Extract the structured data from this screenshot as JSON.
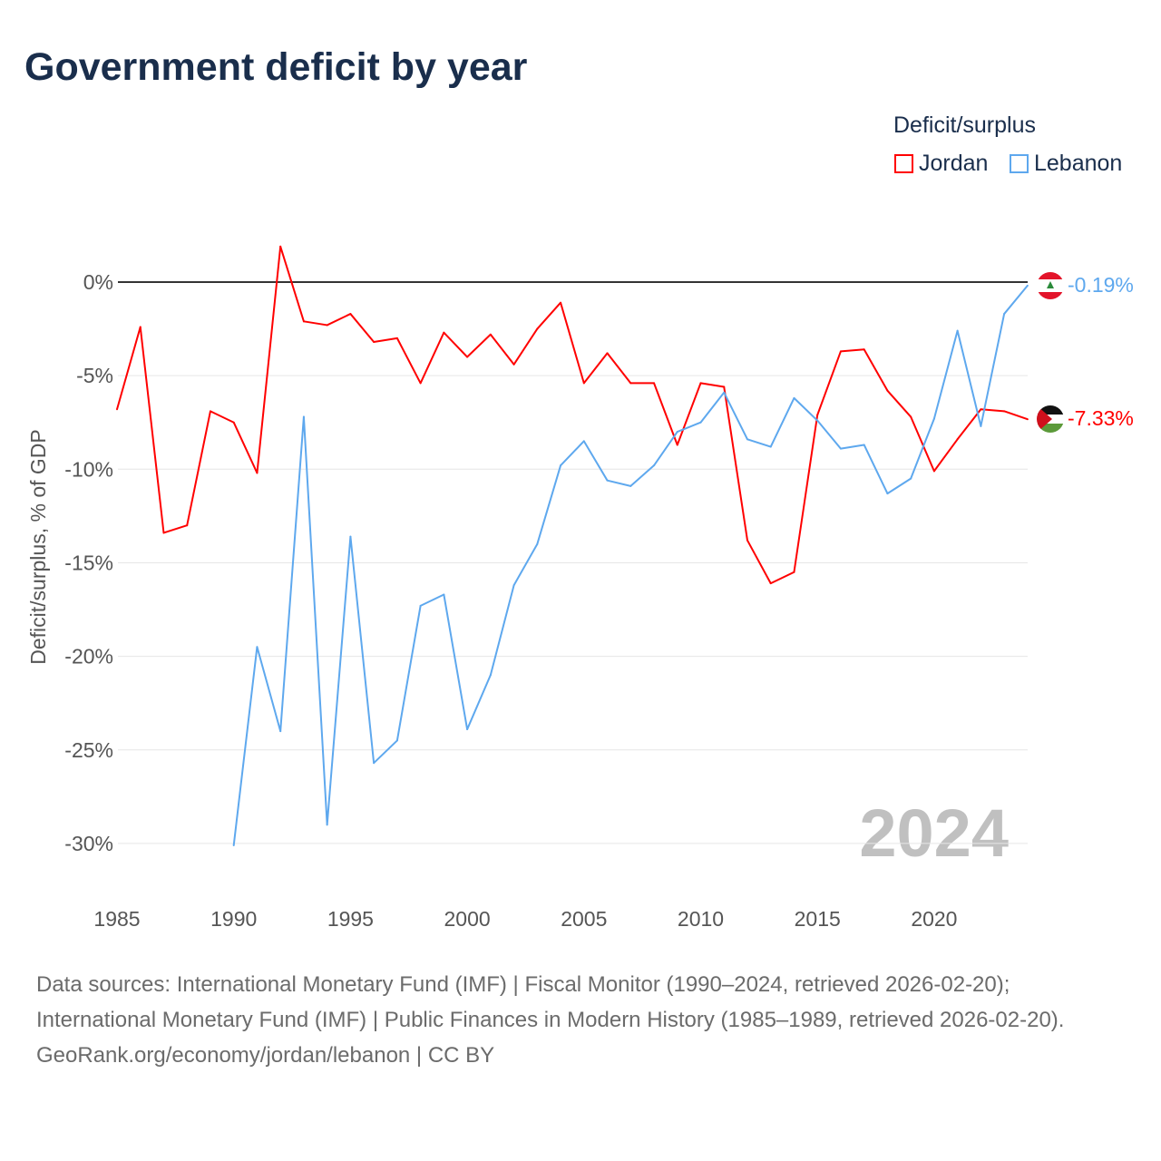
{
  "title": "Government deficit by year",
  "legend": {
    "title": "Deficit/surplus",
    "items": [
      {
        "label": "Jordan",
        "color": "#ff0000"
      },
      {
        "label": "Lebanon",
        "color": "#5ea8ee"
      }
    ]
  },
  "year_overlay": "2024",
  "end_labels": {
    "jordan": "-7.33%",
    "lebanon": "-0.19%"
  },
  "footer": {
    "sources": "Data sources: International Monetary Fund (IMF) | Fiscal Monitor (1990–2024, retrieved 2026-02-20); International Monetary Fund (IMF) | Public Finances in Modern History (1985–1989, retrieved 2026-02-20).",
    "credit": "GeoRank.org/economy/jordan/lebanon | CC BY"
  },
  "chart_data": {
    "type": "line",
    "title": "Government deficit by year",
    "xlabel": "",
    "ylabel": "Deficit/surplus, % of GDP",
    "xlim": [
      1985,
      2024
    ],
    "ylim": [
      -30,
      0
    ],
    "xticks": [
      1985,
      1990,
      1995,
      2000,
      2005,
      2010,
      2015,
      2020
    ],
    "yticks": [
      0,
      -5,
      -10,
      -15,
      -20,
      -25,
      -30
    ],
    "ytick_labels": [
      "0%",
      "-5%",
      "-10%",
      "-15%",
      "-20%",
      "-25%",
      "-30%"
    ],
    "legend_position": "top-right",
    "series": [
      {
        "name": "Jordan",
        "color": "#ff0000",
        "x": [
          1985,
          1986,
          1987,
          1988,
          1989,
          1990,
          1991,
          1992,
          1993,
          1994,
          1995,
          1996,
          1997,
          1998,
          1999,
          2000,
          2001,
          2002,
          2003,
          2004,
          2005,
          2006,
          2007,
          2008,
          2009,
          2010,
          2011,
          2012,
          2013,
          2014,
          2015,
          2016,
          2017,
          2018,
          2019,
          2020,
          2021,
          2022,
          2023,
          2024
        ],
        "values": [
          -6.8,
          -2.4,
          -13.4,
          -13.0,
          -6.9,
          -7.5,
          -10.2,
          1.9,
          -2.1,
          -2.3,
          -1.7,
          -3.2,
          -3.0,
          -5.4,
          -2.7,
          -4.0,
          -2.8,
          -4.4,
          -2.5,
          -1.1,
          -5.4,
          -3.8,
          -5.4,
          -5.4,
          -8.7,
          -5.4,
          -5.6,
          -13.8,
          -16.1,
          -15.5,
          -7.1,
          -3.7,
          -3.6,
          -5.8,
          -7.2,
          -10.1,
          -8.4,
          -6.8,
          -6.9,
          -7.33
        ]
      },
      {
        "name": "Lebanon",
        "color": "#5ea8ee",
        "x": [
          1990,
          1991,
          1992,
          1993,
          1994,
          1995,
          1996,
          1997,
          1998,
          1999,
          2000,
          2001,
          2002,
          2003,
          2004,
          2005,
          2006,
          2007,
          2008,
          2009,
          2010,
          2011,
          2012,
          2013,
          2014,
          2015,
          2016,
          2017,
          2018,
          2019,
          2020,
          2021,
          2022,
          2023,
          2024
        ],
        "values": [
          -30.1,
          -19.5,
          -24.0,
          -7.2,
          -29.0,
          -13.6,
          -25.7,
          -24.5,
          -17.3,
          -16.7,
          -23.9,
          -21.0,
          -16.2,
          -14.0,
          -9.8,
          -8.5,
          -10.6,
          -10.9,
          -9.8,
          -8.0,
          -7.5,
          -5.9,
          -8.4,
          -8.8,
          -6.2,
          -7.4,
          -8.9,
          -8.7,
          -11.3,
          -10.5,
          -7.3,
          -2.6,
          -7.7,
          -1.7,
          -0.19
        ]
      }
    ]
  }
}
